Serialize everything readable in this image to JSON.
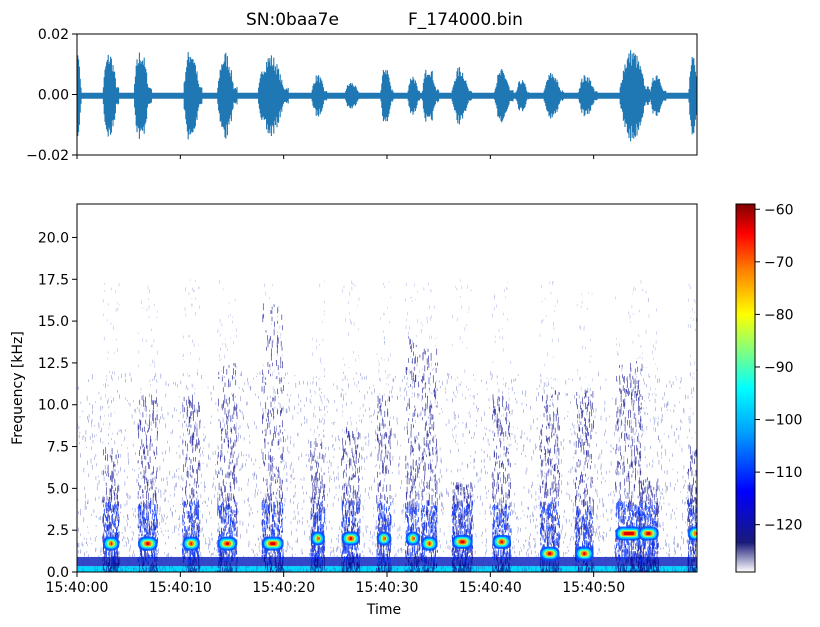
{
  "chart_data": [
    {
      "type": "line",
      "title_left": "SN:0baa7e",
      "title_right": "F_174000.bin",
      "ylim": [
        -0.02,
        0.02
      ],
      "y_ticks": [
        "0.02",
        "0.00",
        "−0.02"
      ],
      "y_tick_values": [
        0.02,
        0.0,
        -0.02
      ],
      "x_range_seconds": [
        0,
        60
      ],
      "series_color": "#1f77b4",
      "bursts": [
        {
          "t": 0.0,
          "amp": 0.019,
          "dur": 0.4
        },
        {
          "t": 2.5,
          "amp": 0.017,
          "dur": 1.6
        },
        {
          "t": 5.5,
          "amp": 0.018,
          "dur": 1.7
        },
        {
          "t": 10.3,
          "amp": 0.019,
          "dur": 1.8
        },
        {
          "t": 13.6,
          "amp": 0.017,
          "dur": 1.9
        },
        {
          "t": 17.5,
          "amp": 0.016,
          "dur": 3.0
        },
        {
          "t": 22.7,
          "amp": 0.008,
          "dur": 1.5
        },
        {
          "t": 25.9,
          "amp": 0.005,
          "dur": 1.6
        },
        {
          "t": 29.4,
          "amp": 0.012,
          "dur": 1.2
        },
        {
          "t": 32.0,
          "amp": 0.008,
          "dur": 1.2
        },
        {
          "t": 33.4,
          "amp": 0.012,
          "dur": 1.6
        },
        {
          "t": 36.3,
          "amp": 0.011,
          "dur": 1.9
        },
        {
          "t": 40.4,
          "amp": 0.01,
          "dur": 1.8
        },
        {
          "t": 42.5,
          "amp": 0.006,
          "dur": 1.3
        },
        {
          "t": 45.2,
          "amp": 0.009,
          "dur": 1.9
        },
        {
          "t": 48.5,
          "amp": 0.008,
          "dur": 1.9
        },
        {
          "t": 52.5,
          "amp": 0.018,
          "dur": 3.0
        },
        {
          "t": 55.5,
          "amp": 0.009,
          "dur": 1.5
        },
        {
          "t": 59.2,
          "amp": 0.015,
          "dur": 1.0
        }
      ]
    },
    {
      "type": "heatmap",
      "xlabel": "Time",
      "ylabel": "Frequency [kHz]",
      "ylim": [
        0,
        22
      ],
      "y_ticks": [
        "0.0",
        "2.5",
        "5.0",
        "7.5",
        "10.0",
        "12.5",
        "15.0",
        "17.5",
        "20.0"
      ],
      "y_tick_values": [
        0,
        2.5,
        5,
        7.5,
        10,
        12.5,
        15,
        17.5,
        20
      ],
      "x_ticks": [
        "15:40:00",
        "15:40:10",
        "15:40:20",
        "15:40:30",
        "15:40:40",
        "15:40:50"
      ],
      "x_tick_values": [
        0,
        10,
        20,
        30,
        40,
        50
      ],
      "x_range_seconds": [
        0,
        60
      ],
      "colormap": "jet",
      "colorbar": {
        "ticks": [
          "−60",
          "−70",
          "−80",
          "−90",
          "−100",
          "−110",
          "−120"
        ],
        "tick_values": [
          -60,
          -70,
          -80,
          -90,
          -100,
          -110,
          -120
        ],
        "range": [
          -129,
          -59
        ]
      },
      "calls": [
        {
          "t": 2.8,
          "f": 1.7,
          "dur": 1.0
        },
        {
          "t": 6.2,
          "f": 1.7,
          "dur": 1.3
        },
        {
          "t": 10.5,
          "f": 1.7,
          "dur": 1.1
        },
        {
          "t": 13.9,
          "f": 1.7,
          "dur": 1.3
        },
        {
          "t": 18.2,
          "f": 1.7,
          "dur": 1.5
        },
        {
          "t": 22.9,
          "f": 2.0,
          "dur": 0.8
        },
        {
          "t": 25.9,
          "f": 2.0,
          "dur": 1.2
        },
        {
          "t": 29.3,
          "f": 2.0,
          "dur": 0.8
        },
        {
          "t": 32.1,
          "f": 2.0,
          "dur": 0.8
        },
        {
          "t": 33.6,
          "f": 1.7,
          "dur": 1.0
        },
        {
          "t": 36.6,
          "f": 1.8,
          "dur": 1.4
        },
        {
          "t": 40.5,
          "f": 1.8,
          "dur": 1.2
        },
        {
          "t": 45.1,
          "f": 1.1,
          "dur": 1.3
        },
        {
          "t": 48.5,
          "f": 1.1,
          "dur": 1.2
        },
        {
          "t": 52.4,
          "f": 2.3,
          "dur": 2.0
        },
        {
          "t": 54.6,
          "f": 2.3,
          "dur": 1.4
        },
        {
          "t": 59.4,
          "f": 2.3,
          "dur": 0.8
        }
      ]
    }
  ]
}
